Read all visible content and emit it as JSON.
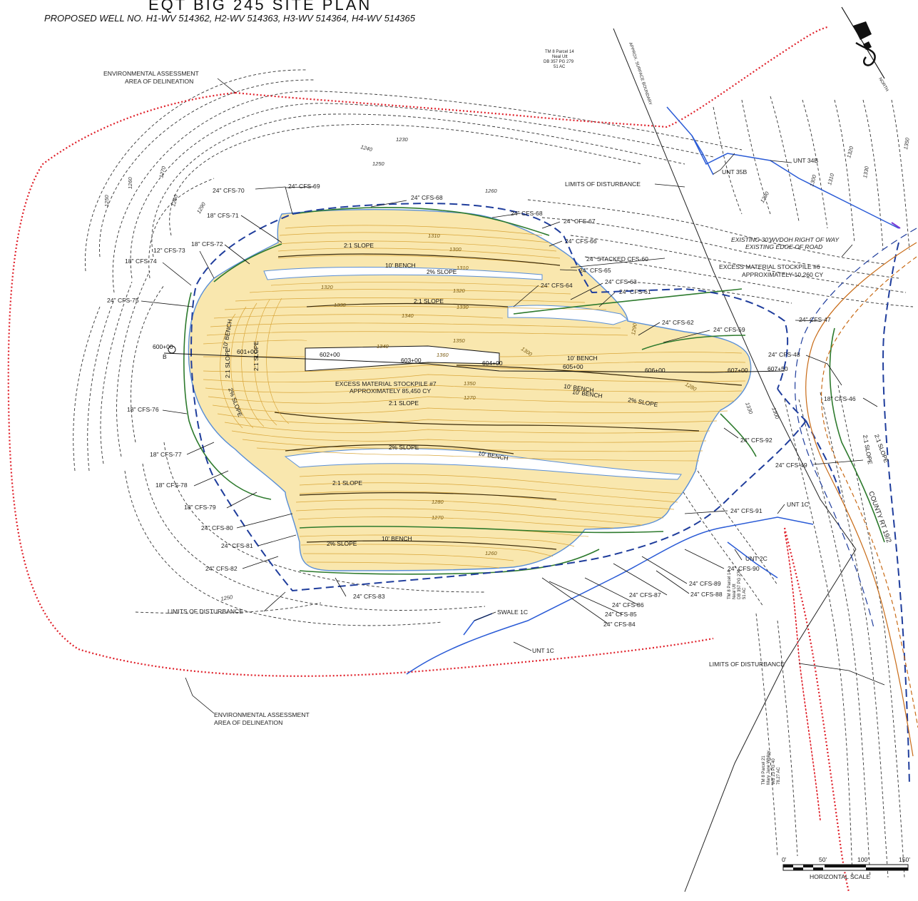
{
  "header": {
    "title": "EQT  BIG  245  SITE  PLAN",
    "subtitle": "PROPOSED  WELL  NO.  H1-WV  514362,  H2-WV  514363,  H3-WV  514364,  H4-WV  514365"
  },
  "parcels": {
    "top": [
      "TM 8 Parcel 14",
      "Neal Utt",
      "DB 357 PG 279",
      "51 AC"
    ],
    "right": [
      "TM 8 Parcel 14",
      "Neal Utt",
      "DB 357 PG 279",
      "51 AC"
    ],
    "bottom": [
      "TM 8 Parcel 21",
      "Mary Jane Whiley",
      "WB 23 PG 40",
      "78.27 AC"
    ],
    "boundary_label": "APPROX. SURFACE BOUNDARY"
  },
  "labels": {
    "env_top": [
      "ENVIRONMENTAL  ASSESSMENT",
      "AREA  OF  DELINEATION"
    ],
    "env_bottom": [
      "ENVIRONMENTAL  ASSESSMENT",
      "AREA  OF  DELINEATION"
    ],
    "lod_top": "LIMITS  OF  DISTURBANCE",
    "lod_left": "LIMITS  OF  DISTURBANCE",
    "lod_right": "LIMITS  OF  DISTURBANCE",
    "unt_34b": "UNT  34B",
    "unt_35b": "UNT  35B",
    "unt_1c_top": "UNT  1C",
    "unt_1c_bottom": "UNT  1C",
    "unt_2c": "UNT  2C",
    "swale_1c": "SWALE  1C",
    "row": "EXISTING  30'WVDOH  RIGHT  OF  WAY",
    "edge_road": "EXISTING  EDGE  OF  ROAD",
    "stockpile6_a": "EXCESS  MATERIAL  STOCKPILE  #6",
    "stockpile6_b": "APPROXIMATELY  10,260  CY",
    "stockpile7_a": "EXCESS  MATERIAL  STOCKPILE  #7",
    "stockpile7_b": "APPROXIMATELY  85,450  CY",
    "county_rt": "COUNTY  RT  19/2",
    "stacked": "24\"  STACKED  CFS-60",
    "north": "NORTH"
  },
  "cfs_left": {
    "c70": "24\"  CFS-70",
    "c69": "24\"  CFS-69",
    "c71": "18\"  CFS-71",
    "c72": "18\"  CFS-72",
    "c73": "12\"  CFS-73",
    "c74": "18\"  CFS-74",
    "c75": "24\"  CFS-75",
    "c76": "18\"  CFS-76",
    "c77": "18\"  CFS-77",
    "c78": "18\"  CFS-78",
    "c79": "18\"  CFS-79",
    "c80": "24\"  CFS-80",
    "c81": "24\"  CFS-81",
    "c82": "24\"  CFS-82",
    "c83": "24\"  CFS-83"
  },
  "cfs_right": {
    "c68a": "24\"  CFS-68",
    "c68b": "24\"  CFS-68",
    "c67": "24\"  CFS-67",
    "c66": "24\"  CFS-66",
    "c65": "24\"  CFS-65",
    "c64": "24\"  CFS-64",
    "c63": "24\"  CFS-63",
    "c61": "24\"  CFS-61",
    "c62": "24\"  CFS-62",
    "c59": "24\"  CFS-59",
    "c47": "24\"  CFS-47",
    "c48": "24\"  CFS-48",
    "c46": "18\"  CFS-46",
    "c92": "24\"  CFS-92",
    "c49": "24\"  CFS-49",
    "c91": "24\"  CFS-91",
    "c90": "24\"  CFS-90",
    "c89": "24\"  CFS-89",
    "c88": "24\"  CFS-88",
    "c87": "24\"  CFS-87",
    "c86": "24\"  CFS-86",
    "c85": "24\"  CFS-85",
    "c84": "24\"  CFS-84"
  },
  "slopes": {
    "s1": "2:1  SLOPE",
    "s2": "10' BENCH",
    "s3": "2%  SLOPE",
    "s4": "2:1  SLOPE",
    "s5": "2:1  SLOPE",
    "s6": "2%  SLOPE",
    "s7": "10' BENCH",
    "s8": "2%  SLOPE",
    "s9": "2:1  SLOPE",
    "s10": "10' BENCH",
    "s11": "2:1  SLOPE",
    "s12": "2%  SLOPE",
    "s13": "10' BENCH",
    "s14": "10' BENCH",
    "s15": "2:1  SLOPE",
    "s16": "2%  SLOPE",
    "s17": "10' BENCH",
    "s18": "10' BENCH",
    "s19": "2:1  SLOPE",
    "s20": "2:1  SLOPE"
  },
  "stations": {
    "s600": "600+00",
    "s601": "601+00",
    "s602": "602+00",
    "s603": "603+00",
    "s604": "604+00",
    "s605": "605+00",
    "s606": "606+00",
    "s607": "607+00",
    "s607b": "607+50",
    "b": "B"
  },
  "elevations": {
    "e1230": "1230",
    "e1240": "1240",
    "e1250a": "1250",
    "e1260a": "1260",
    "e1250b": "1250",
    "e1260b": "1260",
    "e1270": "1270",
    "e1280": "1280",
    "e1290": "1290",
    "e1300a": "1300",
    "e1310": "1310",
    "e1320": "1320",
    "e1330": "1330",
    "e1350": "1350",
    "e1290b": "1290",
    "e1300b": "1300",
    "e1310b": "1310",
    "e1320b": "1320",
    "e1330b": "1330",
    "e1340": "1340",
    "e1350b": "1350",
    "e1360": "1360",
    "e1340b": "1340",
    "e1320c": "1320",
    "e1310c": "1310",
    "e1300c": "1300",
    "e1290c": "1290",
    "e1280b": "1280",
    "e1270b": "1270",
    "e1260c": "1260",
    "e1250c": "1250",
    "e1330c": "1330",
    "e1300d": "1300",
    "e1290d": "1290",
    "e1280c": "1280",
    "e1270c": "1270",
    "e1350c": "1350",
    "e1330d": "1330"
  },
  "scale": {
    "t0": "0'",
    "t50": "50'",
    "t100": "100'",
    "t150": "150'",
    "label": "HORIZONTAL  SCALE"
  },
  "colors": {
    "fill_area": "#f9e7ae",
    "lod": "#1f3d9c",
    "env_boundary": "#e0202a",
    "stream": "#2a5bd6",
    "sock": "#2d7a2d"
  }
}
